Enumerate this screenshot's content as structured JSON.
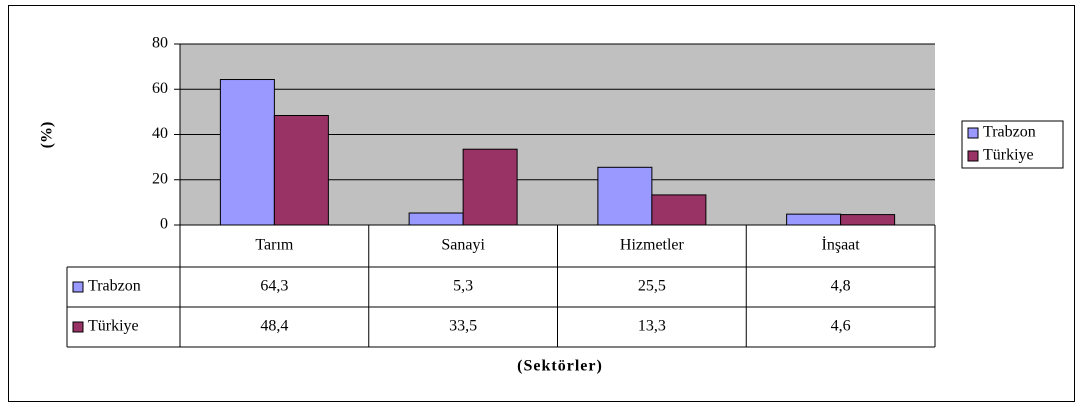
{
  "chart_data": {
    "type": "bar",
    "y_label": "(%)",
    "x_label": "(Sektörler)",
    "annotation": "\"\"",
    "categories": [
      "Tarım",
      "Sanayi",
      "Hizmetler",
      "İnşaat"
    ],
    "series": [
      {
        "name": "Trabzon",
        "color": "#9999ff",
        "values": [
          64.3,
          5.3,
          25.5,
          4.8
        ],
        "value_labels": [
          "64,3",
          "5,3",
          "25,5",
          "4,8"
        ]
      },
      {
        "name": "Türkiye",
        "color": "#993366",
        "values": [
          48.4,
          33.5,
          13.3,
          4.6
        ],
        "value_labels": [
          "48,4",
          "33,5",
          "13,3",
          "4,6"
        ]
      }
    ],
    "ylim": [
      0,
      80
    ],
    "yticks": [
      0,
      20,
      40,
      60,
      80
    ],
    "grid": true,
    "legend": "right",
    "plot_background": "#c0c0c0"
  }
}
